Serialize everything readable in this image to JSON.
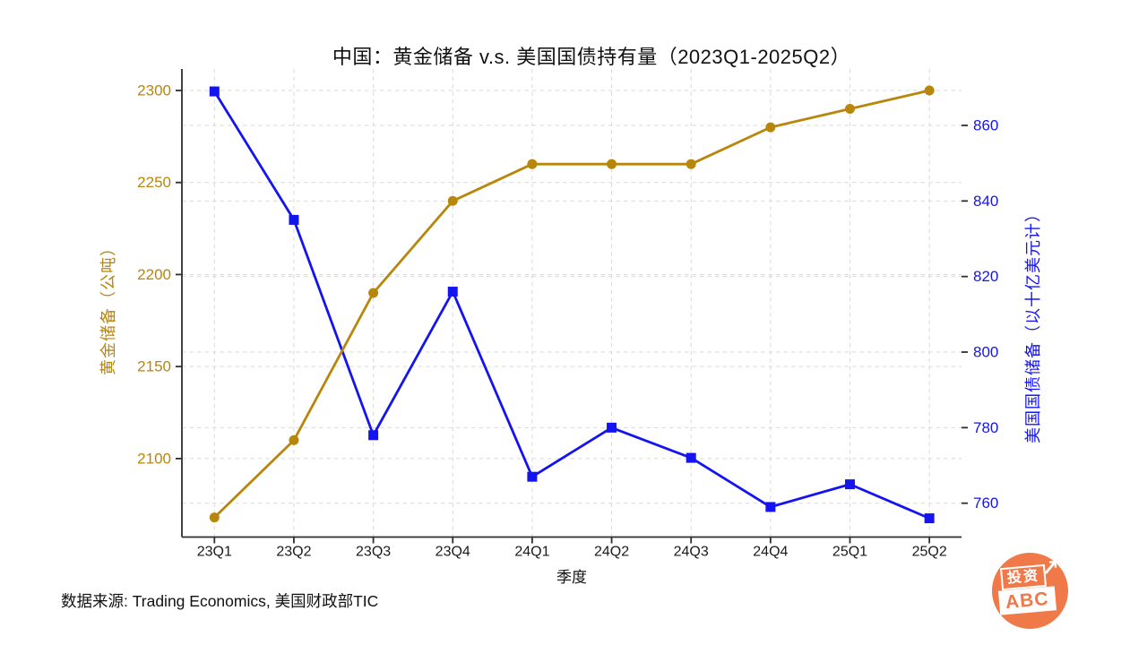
{
  "title": "中国：黄金储备 v.s. 美国国债持有量（2023Q1-2025Q2）",
  "footer_source": "数据来源: Trading Economics, 美国财政部TIC",
  "logo": {
    "line1": "投资",
    "line2": "ABC",
    "arrow": "↗",
    "color": "#f0794a"
  },
  "colors": {
    "gold_series": "#b8860b",
    "blue_series": "#1414f0",
    "grid": "#d9d9d9",
    "spine": "#2e2e2e",
    "x_tick_label": "#1a1a1a",
    "logo_orange": "#f0794a"
  },
  "chart_data": {
    "type": "line",
    "title": "中国：黄金储备 v.s. 美国国债持有量（2023Q1-2025Q2）",
    "xlabel": "季度",
    "ylabel_left": "黄金储备（公吨）",
    "ylabel_right": "美国国债储备（以十亿美元计）",
    "categories": [
      "23Q1",
      "23Q2",
      "23Q3",
      "23Q4",
      "24Q1",
      "24Q2",
      "24Q3",
      "24Q4",
      "25Q1",
      "25Q2"
    ],
    "series": [
      {
        "name": "黄金储备",
        "axis": "left",
        "unit": "公吨",
        "color": "#b8860b",
        "marker": "circle",
        "values": [
          2068,
          2110,
          2190,
          2240,
          2260,
          2260,
          2260,
          2280,
          2290,
          2300
        ]
      },
      {
        "name": "美国国债持有量",
        "axis": "right",
        "unit": "十亿美元",
        "color": "#1414f0",
        "marker": "square",
        "values": [
          869,
          835,
          778,
          816,
          767,
          780,
          772,
          759,
          765,
          756
        ]
      }
    ],
    "left_ticks": [
      2100,
      2150,
      2200,
      2250,
      2300
    ],
    "right_ticks": [
      760,
      780,
      800,
      820,
      840,
      860
    ],
    "ylim_left": [
      2057,
      2312
    ],
    "ylim_right": [
      751,
      875
    ],
    "grid": true,
    "grid_style": "dashed",
    "legend": "none"
  }
}
